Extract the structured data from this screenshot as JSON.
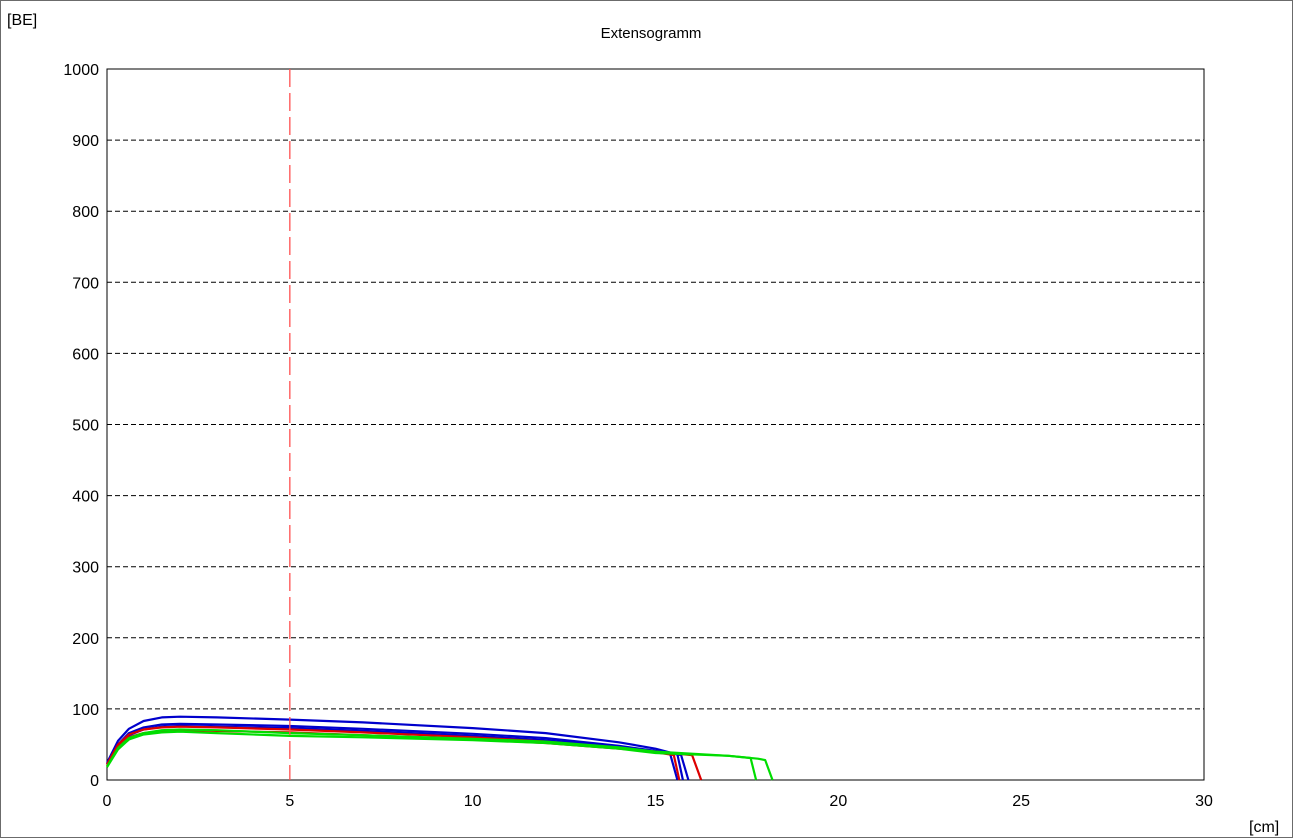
{
  "chart_data": {
    "type": "line",
    "title": "Extensogramm",
    "ylabel": "[BE]",
    "xlabel": "[cm]",
    "xlim": [
      0,
      30
    ],
    "ylim": [
      0,
      1000
    ],
    "x_ticks": [
      "0",
      "5",
      "10",
      "15",
      "20",
      "25",
      "30"
    ],
    "y_ticks": [
      "0",
      "100",
      "200",
      "300",
      "400",
      "500",
      "600",
      "700",
      "800",
      "900",
      "1000"
    ],
    "grid": "horizontal-dashed",
    "marker_line": {
      "x": 5,
      "color": "#ff5050",
      "style": "dashed"
    },
    "series": [
      {
        "color": "#0000cc",
        "points": [
          [
            0,
            24
          ],
          [
            0.3,
            55
          ],
          [
            0.6,
            72
          ],
          [
            1,
            83
          ],
          [
            1.5,
            88
          ],
          [
            2,
            89
          ],
          [
            3,
            88
          ],
          [
            5,
            85
          ],
          [
            7,
            81
          ],
          [
            10,
            73
          ],
          [
            12,
            66
          ],
          [
            14,
            53
          ],
          [
            15,
            44
          ],
          [
            15.6,
            36
          ],
          [
            15.75,
            0
          ]
        ]
      },
      {
        "color": "#0000cc",
        "points": [
          [
            0,
            22
          ],
          [
            0.3,
            50
          ],
          [
            0.6,
            66
          ],
          [
            1,
            74
          ],
          [
            1.5,
            78
          ],
          [
            2,
            79
          ],
          [
            3,
            78
          ],
          [
            5,
            76
          ],
          [
            7,
            72
          ],
          [
            10,
            65
          ],
          [
            12,
            59
          ],
          [
            14,
            48
          ],
          [
            15,
            41
          ],
          [
            15.7,
            35
          ],
          [
            15.9,
            0
          ]
        ]
      },
      {
        "color": "#0000cc",
        "points": [
          [
            0,
            22
          ],
          [
            0.3,
            48
          ],
          [
            0.6,
            63
          ],
          [
            1,
            71
          ],
          [
            1.5,
            75
          ],
          [
            2,
            76
          ],
          [
            3,
            75
          ],
          [
            5,
            73
          ],
          [
            7,
            69
          ],
          [
            10,
            62
          ],
          [
            12,
            56
          ],
          [
            14,
            46
          ],
          [
            15,
            40
          ],
          [
            15.4,
            37
          ],
          [
            15.6,
            0
          ]
        ]
      },
      {
        "color": "#dd0000",
        "points": [
          [
            0,
            22
          ],
          [
            0.3,
            50
          ],
          [
            0.6,
            64
          ],
          [
            1,
            71
          ],
          [
            1.5,
            74
          ],
          [
            2,
            75
          ],
          [
            3,
            74
          ],
          [
            5,
            71
          ],
          [
            7,
            67
          ],
          [
            10,
            60
          ],
          [
            12,
            54
          ],
          [
            14,
            45
          ],
          [
            15,
            39
          ],
          [
            15.5,
            35
          ],
          [
            15.65,
            0
          ]
        ]
      },
      {
        "color": "#dd0000",
        "points": [
          [
            0,
            20
          ],
          [
            0.3,
            46
          ],
          [
            0.6,
            60
          ],
          [
            1,
            66
          ],
          [
            1.5,
            69
          ],
          [
            2,
            70
          ],
          [
            3,
            69
          ],
          [
            5,
            67
          ],
          [
            7,
            63
          ],
          [
            10,
            57
          ],
          [
            12,
            52
          ],
          [
            14,
            44
          ],
          [
            15,
            40
          ],
          [
            15.8,
            36
          ],
          [
            16,
            35
          ],
          [
            16.25,
            0
          ]
        ]
      },
      {
        "color": "#00dd00",
        "points": [
          [
            0,
            18
          ],
          [
            0.3,
            43
          ],
          [
            0.6,
            57
          ],
          [
            1,
            64
          ],
          [
            1.5,
            67
          ],
          [
            2,
            68
          ],
          [
            3,
            66
          ],
          [
            5,
            62
          ],
          [
            7,
            60
          ],
          [
            10,
            56
          ],
          [
            12,
            52
          ],
          [
            14,
            44
          ],
          [
            15,
            38
          ],
          [
            16,
            36
          ],
          [
            17,
            34
          ],
          [
            17.6,
            31
          ],
          [
            17.75,
            0
          ]
        ]
      },
      {
        "color": "#00dd00",
        "points": [
          [
            0,
            19
          ],
          [
            0.3,
            45
          ],
          [
            0.6,
            59
          ],
          [
            1,
            66
          ],
          [
            1.5,
            70
          ],
          [
            2,
            71
          ],
          [
            3,
            70
          ],
          [
            5,
            66
          ],
          [
            7,
            63
          ],
          [
            10,
            58
          ],
          [
            12,
            54
          ],
          [
            14,
            46
          ],
          [
            15,
            40
          ],
          [
            16,
            37
          ],
          [
            17,
            34
          ],
          [
            17.8,
            30
          ],
          [
            18,
            28
          ],
          [
            18.2,
            0
          ]
        ]
      }
    ]
  }
}
